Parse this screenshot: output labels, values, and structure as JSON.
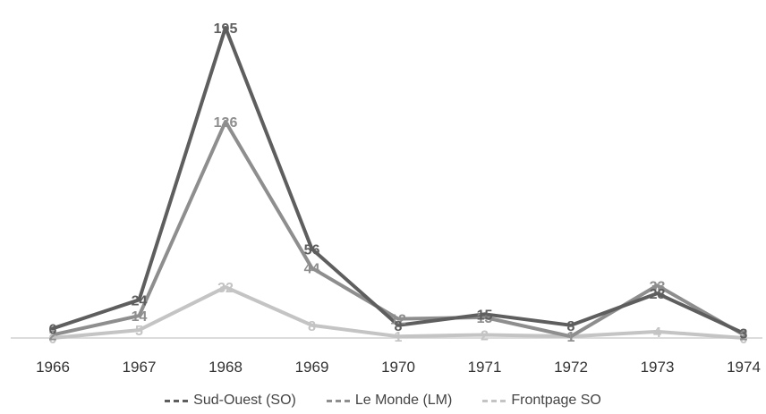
{
  "chart_data": {
    "type": "line",
    "categories": [
      "1966",
      "1967",
      "1968",
      "1969",
      "1970",
      "1971",
      "1972",
      "1973",
      "1974"
    ],
    "series": [
      {
        "name": "Sud-Ouest (SO)",
        "color": "#5e5e5e",
        "values": [
          6,
          24,
          195,
          56,
          8,
          15,
          8,
          28,
          3
        ]
      },
      {
        "name": "Le Monde (LM)",
        "color": "#8e8e8e",
        "values": [
          2,
          14,
          136,
          44,
          12,
          13,
          1,
          33,
          2
        ]
      },
      {
        "name": "Frontpage SO",
        "color": "#c4c4c4",
        "values": [
          0,
          5,
          32,
          8,
          1,
          2,
          1,
          4,
          0
        ]
      }
    ],
    "ylim": [
      0,
      195
    ],
    "grid": false,
    "legend_position": "bottom"
  }
}
